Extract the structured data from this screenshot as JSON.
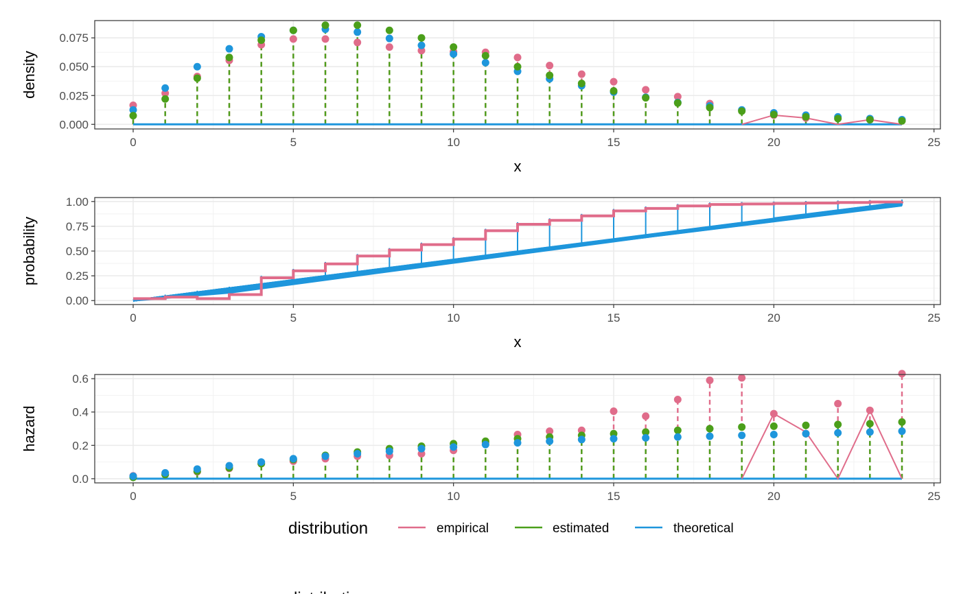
{
  "legend": {
    "title": "distribution",
    "entries": [
      {
        "label": "empirical",
        "color": "#E06C8A"
      },
      {
        "label": "estimated",
        "color": "#4B9F1A"
      },
      {
        "label": "theoretical",
        "color": "#1E96DC"
      }
    ],
    "position": "bottom",
    "partial_title": "distribution"
  },
  "chart_data": [
    {
      "type": "line",
      "panel": "density",
      "xlabel": "x",
      "ylabel": "density",
      "xlim": [
        -1.2,
        25.2
      ],
      "ylim": [
        -0.004,
        0.09
      ],
      "x_ticks": [
        0,
        5,
        10,
        15,
        20,
        25
      ],
      "y_ticks": [
        0.0,
        0.025,
        0.05,
        0.075
      ],
      "y_tick_labels": [
        "0.000",
        "0.025",
        "0.050",
        "0.075"
      ],
      "x": [
        0,
        1,
        2,
        3,
        4,
        5,
        6,
        7,
        8,
        9,
        10,
        11,
        12,
        13,
        14,
        15,
        16,
        17,
        18,
        19,
        20,
        21,
        22,
        23,
        24
      ],
      "series": [
        {
          "name": "empirical",
          "style": "points+dashed-stems+line",
          "values": [
            0.0165,
            0.027,
            0.0415,
            0.0555,
            0.069,
            0.074,
            0.074,
            0.071,
            0.067,
            0.064,
            0.063,
            0.0625,
            0.058,
            0.051,
            0.0435,
            0.037,
            0.03,
            0.024,
            0.018,
            0.0,
            0.008,
            0.0055,
            0.0,
            0.004,
            0.0
          ]
        },
        {
          "name": "estimated",
          "style": "points+dashed-stems",
          "values": [
            0.0075,
            0.022,
            0.04,
            0.058,
            0.073,
            0.0815,
            0.086,
            0.086,
            0.0815,
            0.075,
            0.067,
            0.0595,
            0.05,
            0.0425,
            0.0355,
            0.029,
            0.023,
            0.0185,
            0.0145,
            0.0115,
            0.0085,
            0.0065,
            0.005,
            0.004,
            0.003
          ]
        },
        {
          "name": "theoretical",
          "style": "points+baseline",
          "values": [
            0.0125,
            0.0315,
            0.05,
            0.0655,
            0.076,
            0.0815,
            0.0825,
            0.08,
            0.0745,
            0.0685,
            0.061,
            0.0535,
            0.046,
            0.0395,
            0.0335,
            0.028,
            0.0235,
            0.019,
            0.016,
            0.0125,
            0.01,
            0.008,
            0.0065,
            0.005,
            0.004
          ]
        }
      ]
    },
    {
      "type": "line",
      "panel": "probability",
      "xlabel": "x",
      "ylabel": "probability",
      "xlim": [
        -1.2,
        25.2
      ],
      "ylim": [
        -0.04,
        1.04
      ],
      "x_ticks": [
        0,
        5,
        10,
        15,
        20,
        25
      ],
      "y_ticks": [
        0.0,
        0.25,
        0.5,
        0.75,
        1.0
      ],
      "y_tick_labels": [
        "0.00",
        "0.25",
        "0.50",
        "0.75",
        "1.00"
      ],
      "x": [
        0,
        1,
        2,
        3,
        4,
        5,
        6,
        7,
        8,
        9,
        10,
        11,
        12,
        13,
        14,
        15,
        16,
        17,
        18,
        19,
        20,
        21,
        22,
        23,
        24
      ],
      "series": [
        {
          "name": "empirical",
          "style": "steps",
          "values": [
            0.02,
            0.035,
            0.02,
            0.06,
            0.23,
            0.3,
            0.37,
            0.45,
            0.51,
            0.565,
            0.62,
            0.705,
            0.77,
            0.81,
            0.855,
            0.905,
            0.93,
            0.955,
            0.97,
            0.975,
            0.98,
            0.985,
            0.99,
            0.995,
            1.0
          ]
        },
        {
          "name": "theoretical",
          "style": "band",
          "values": [
            0.0,
            0.04,
            0.08,
            0.12,
            0.16,
            0.2,
            0.24,
            0.28,
            0.32,
            0.36,
            0.4,
            0.44,
            0.48,
            0.52,
            0.56,
            0.6,
            0.64,
            0.68,
            0.72,
            0.76,
            0.8,
            0.84,
            0.88,
            0.92,
            0.96
          ]
        }
      ]
    },
    {
      "type": "line",
      "panel": "hazard",
      "xlabel": "",
      "ylabel": "hazard",
      "xlim": [
        -1.2,
        25.2
      ],
      "ylim": [
        -0.025,
        0.625
      ],
      "x_ticks": [
        0,
        5,
        10,
        15,
        20,
        25
      ],
      "y_ticks": [
        0.0,
        0.2,
        0.4,
        0.6
      ],
      "y_tick_labels": [
        "0.0",
        "0.2",
        "0.4",
        "0.6"
      ],
      "x": [
        0,
        1,
        2,
        3,
        4,
        5,
        6,
        7,
        8,
        9,
        10,
        11,
        12,
        13,
        14,
        15,
        16,
        17,
        18,
        19,
        20,
        21,
        22,
        23,
        24
      ],
      "series": [
        {
          "name": "empirical",
          "style": "points+dashed-stems",
          "values": [
            0.017,
            0.025,
            0.042,
            0.062,
            0.09,
            0.105,
            0.12,
            0.135,
            0.14,
            0.15,
            0.17,
            0.215,
            0.265,
            0.285,
            0.29,
            0.405,
            0.375,
            0.475,
            0.59,
            0.605,
            0.39,
            0.27,
            0.45,
            0.41,
            0.63
          ]
        },
        {
          "name": "empirical-line",
          "style": "line",
          "values": [
            0,
            0,
            0,
            0,
            0,
            0,
            0,
            0,
            0,
            0,
            0,
            0,
            0,
            0,
            0,
            0,
            0,
            0,
            0,
            0,
            0.39,
            0.28,
            0,
            0.41,
            0
          ]
        },
        {
          "name": "estimated",
          "style": "points+dashed-stems",
          "values": [
            0.008,
            0.025,
            0.045,
            0.065,
            0.09,
            0.115,
            0.14,
            0.16,
            0.18,
            0.195,
            0.21,
            0.225,
            0.24,
            0.25,
            0.26,
            0.27,
            0.28,
            0.29,
            0.3,
            0.31,
            0.315,
            0.32,
            0.325,
            0.33,
            0.34
          ]
        },
        {
          "name": "theoretical",
          "style": "points+baseline",
          "values": [
            0.015,
            0.035,
            0.058,
            0.078,
            0.1,
            0.12,
            0.135,
            0.15,
            0.165,
            0.18,
            0.19,
            0.205,
            0.215,
            0.225,
            0.235,
            0.24,
            0.245,
            0.25,
            0.255,
            0.26,
            0.265,
            0.27,
            0.275,
            0.28,
            0.285
          ]
        }
      ]
    }
  ]
}
